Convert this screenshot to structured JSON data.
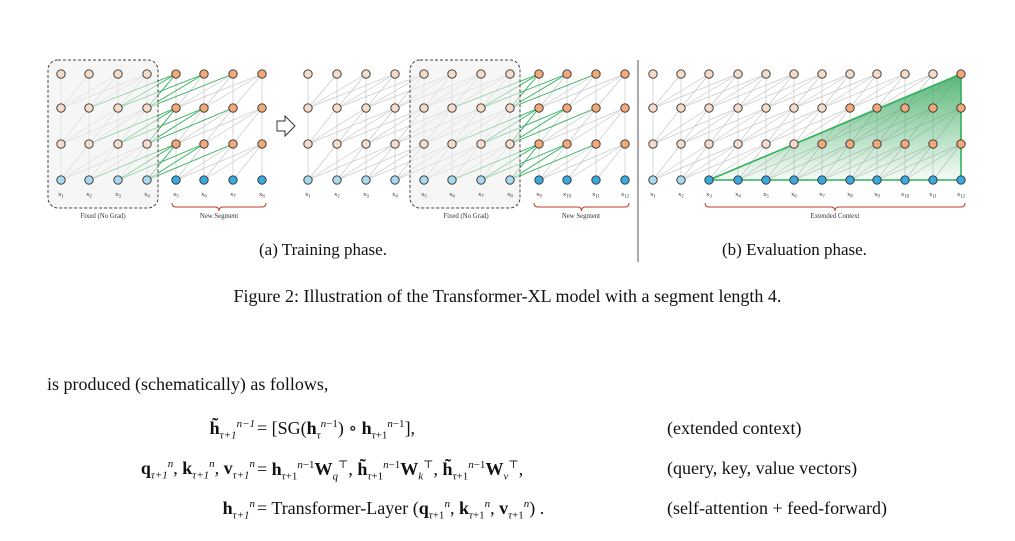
{
  "figure": {
    "train_segment1_labels": [
      "x1",
      "x2",
      "x3",
      "x4"
    ],
    "train_segment2_labels": [
      "x5",
      "x6",
      "x7",
      "x8"
    ],
    "train_second_left_labels": [
      "x1",
      "x2",
      "x3",
      "x4"
    ],
    "train_second_fixed_labels": [
      "x5",
      "x6",
      "x7",
      "x8"
    ],
    "train_second_new_labels": [
      "x9",
      "x10",
      "x11",
      "x12"
    ],
    "eval_labels": [
      "x1",
      "x2",
      "x3",
      "x4",
      "x5",
      "x6",
      "x7",
      "x8",
      "x9",
      "x10",
      "x11",
      "x12"
    ],
    "fixed_label": "Fixed (No Grad)",
    "new_segment_label": "New Segment",
    "extended_context_label": "Extended Context",
    "caption_a": "(a) Training phase.",
    "caption_b": "(b) Evaluation phase.",
    "colors": {
      "hidden_node": "#f6dcc8",
      "top_node_new": "#f2a97a",
      "input_node": "#a9d8ef",
      "input_node_new": "#39a9e0",
      "edge_gray": "#c8c8c8",
      "edge_green": "#2fb25a",
      "triangle_fill": "#3daa62"
    }
  },
  "caption": "Figure 2: Illustration of the Transformer-XL model with a segment length 4.",
  "body_text": "is produced (schematically) as follows,",
  "equations": [
    {
      "note": "(extended context)"
    },
    {
      "note": "(query, key, value vectors)"
    },
    {
      "note": "(self-attention + feed-forward)"
    }
  ],
  "equation_text": {
    "sg": "SG",
    "transformer_layer": "Transformer-Layer"
  }
}
